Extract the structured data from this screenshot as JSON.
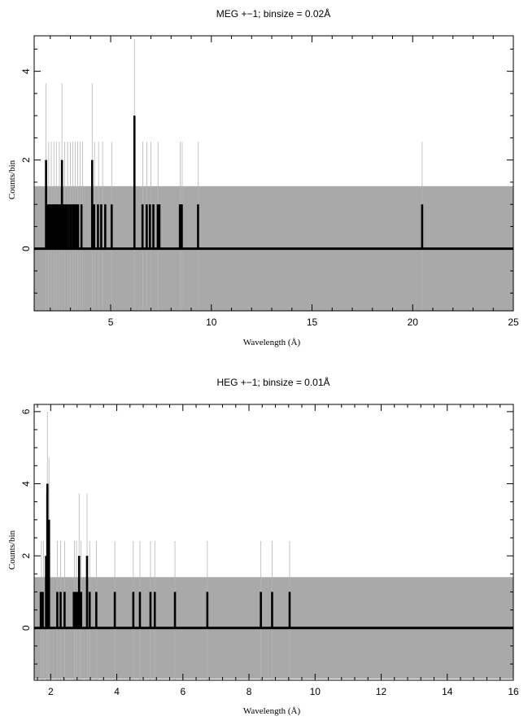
{
  "chart_data": [
    {
      "type": "histogram",
      "title": "MEG +−1; binsize = 0.02Å",
      "xlabel": "Wavelength (Å)",
      "ylabel": "Counts/bin",
      "xlim": [
        1.2,
        25
      ],
      "ylim": [
        -1.4,
        4.8
      ],
      "xticks": [
        5,
        10,
        15,
        20,
        25
      ],
      "yticks": [
        0,
        2,
        4
      ],
      "error_band": {
        "upper": 1.41,
        "lower": -1.41
      },
      "counts_series": {
        "color": "#000000",
        "points": [
          {
            "x": 1.79,
            "y": 2
          },
          {
            "x": 1.88,
            "y": 1
          },
          {
            "x": 1.97,
            "y": 1
          },
          {
            "x": 2.05,
            "y": 1
          },
          {
            "x": 2.14,
            "y": 1
          },
          {
            "x": 2.22,
            "y": 1
          },
          {
            "x": 2.29,
            "y": 1
          },
          {
            "x": 2.36,
            "y": 1
          },
          {
            "x": 2.44,
            "y": 1
          },
          {
            "x": 2.51,
            "y": 1
          },
          {
            "x": 2.58,
            "y": 2
          },
          {
            "x": 2.66,
            "y": 1
          },
          {
            "x": 2.74,
            "y": 1
          },
          {
            "x": 2.82,
            "y": 1
          },
          {
            "x": 2.92,
            "y": 1
          },
          {
            "x": 3.02,
            "y": 1
          },
          {
            "x": 3.12,
            "y": 1
          },
          {
            "x": 3.21,
            "y": 1
          },
          {
            "x": 3.3,
            "y": 1
          },
          {
            "x": 3.38,
            "y": 1
          },
          {
            "x": 3.55,
            "y": 1
          },
          {
            "x": 4.08,
            "y": 2
          },
          {
            "x": 4.18,
            "y": 1
          },
          {
            "x": 4.37,
            "y": 1
          },
          {
            "x": 4.53,
            "y": 1
          },
          {
            "x": 4.73,
            "y": 1
          },
          {
            "x": 5.05,
            "y": 1
          },
          {
            "x": 6.18,
            "y": 3
          },
          {
            "x": 6.58,
            "y": 1
          },
          {
            "x": 6.79,
            "y": 1
          },
          {
            "x": 6.95,
            "y": 1
          },
          {
            "x": 7.12,
            "y": 1
          },
          {
            "x": 7.34,
            "y": 1
          },
          {
            "x": 7.42,
            "y": 1
          },
          {
            "x": 8.44,
            "y": 1
          },
          {
            "x": 8.53,
            "y": 1
          },
          {
            "x": 9.34,
            "y": 1
          },
          {
            "x": 20.47,
            "y": 1
          }
        ]
      },
      "error_spikes": {
        "color": "#b4b4b4",
        "points": [
          {
            "x": 1.79,
            "y": 3.73
          },
          {
            "x": 1.92,
            "y": 2.41
          },
          {
            "x": 2.05,
            "y": 2.41
          },
          {
            "x": 2.18,
            "y": 2.41
          },
          {
            "x": 2.3,
            "y": 2.41
          },
          {
            "x": 2.45,
            "y": 2.41
          },
          {
            "x": 2.58,
            "y": 3.73
          },
          {
            "x": 2.72,
            "y": 2.41
          },
          {
            "x": 2.86,
            "y": 2.41
          },
          {
            "x": 3.0,
            "y": 2.41
          },
          {
            "x": 3.12,
            "y": 2.41
          },
          {
            "x": 3.24,
            "y": 2.41
          },
          {
            "x": 3.36,
            "y": 2.41
          },
          {
            "x": 3.48,
            "y": 2.41
          },
          {
            "x": 3.6,
            "y": 2.41
          },
          {
            "x": 4.08,
            "y": 3.73
          },
          {
            "x": 4.2,
            "y": 2.41
          },
          {
            "x": 4.4,
            "y": 2.41
          },
          {
            "x": 4.6,
            "y": 2.41
          },
          {
            "x": 5.05,
            "y": 2.41
          },
          {
            "x": 6.18,
            "y": 4.73
          },
          {
            "x": 6.6,
            "y": 2.41
          },
          {
            "x": 6.8,
            "y": 2.41
          },
          {
            "x": 7.0,
            "y": 2.41
          },
          {
            "x": 7.35,
            "y": 2.41
          },
          {
            "x": 8.45,
            "y": 2.41
          },
          {
            "x": 8.55,
            "y": 2.41
          },
          {
            "x": 9.35,
            "y": 2.41
          },
          {
            "x": 20.47,
            "y": 2.41
          }
        ]
      }
    },
    {
      "type": "histogram",
      "title": "HEG +−1; binsize = 0.01Å",
      "xlabel": "Wavelength (Å)",
      "ylabel": "Counts/bin",
      "xlim": [
        1.5,
        16
      ],
      "ylim": [
        -1.45,
        6.2
      ],
      "xticks": [
        2,
        4,
        6,
        8,
        10,
        12,
        14,
        16
      ],
      "yticks": [
        0,
        2,
        4,
        6
      ],
      "error_band": {
        "upper": 1.41,
        "lower": -1.41
      },
      "counts_series": {
        "color": "#000000",
        "points": [
          {
            "x": 1.7,
            "y": 1
          },
          {
            "x": 1.76,
            "y": 1
          },
          {
            "x": 1.86,
            "y": 2
          },
          {
            "x": 1.9,
            "y": 4
          },
          {
            "x": 1.95,
            "y": 3
          },
          {
            "x": 2.2,
            "y": 1
          },
          {
            "x": 2.3,
            "y": 1
          },
          {
            "x": 2.42,
            "y": 1
          },
          {
            "x": 2.7,
            "y": 1
          },
          {
            "x": 2.76,
            "y": 1
          },
          {
            "x": 2.82,
            "y": 1
          },
          {
            "x": 2.86,
            "y": 2
          },
          {
            "x": 2.92,
            "y": 1
          },
          {
            "x": 3.1,
            "y": 2
          },
          {
            "x": 3.18,
            "y": 1
          },
          {
            "x": 3.38,
            "y": 1
          },
          {
            "x": 3.94,
            "y": 1
          },
          {
            "x": 4.5,
            "y": 1
          },
          {
            "x": 4.7,
            "y": 1
          },
          {
            "x": 5.02,
            "y": 1
          },
          {
            "x": 5.15,
            "y": 1
          },
          {
            "x": 5.76,
            "y": 1
          },
          {
            "x": 6.74,
            "y": 1
          },
          {
            "x": 8.36,
            "y": 1
          },
          {
            "x": 8.7,
            "y": 1
          },
          {
            "x": 9.23,
            "y": 1
          }
        ]
      },
      "error_spikes": {
        "color": "#b4b4b4",
        "points": [
          {
            "x": 1.72,
            "y": 2.41
          },
          {
            "x": 1.78,
            "y": 2.41
          },
          {
            "x": 1.87,
            "y": 3.73
          },
          {
            "x": 1.9,
            "y": 6.0
          },
          {
            "x": 1.95,
            "y": 4.73
          },
          {
            "x": 2.2,
            "y": 2.41
          },
          {
            "x": 2.3,
            "y": 2.41
          },
          {
            "x": 2.42,
            "y": 2.41
          },
          {
            "x": 2.72,
            "y": 2.41
          },
          {
            "x": 2.78,
            "y": 2.41
          },
          {
            "x": 2.86,
            "y": 3.73
          },
          {
            "x": 2.92,
            "y": 2.41
          },
          {
            "x": 3.1,
            "y": 3.73
          },
          {
            "x": 3.18,
            "y": 2.41
          },
          {
            "x": 3.38,
            "y": 2.41
          },
          {
            "x": 3.94,
            "y": 2.41
          },
          {
            "x": 4.5,
            "y": 2.41
          },
          {
            "x": 4.7,
            "y": 2.41
          },
          {
            "x": 5.02,
            "y": 2.41
          },
          {
            "x": 5.15,
            "y": 2.41
          },
          {
            "x": 5.76,
            "y": 2.41
          },
          {
            "x": 6.74,
            "y": 2.41
          },
          {
            "x": 8.36,
            "y": 2.41
          },
          {
            "x": 8.7,
            "y": 2.41
          },
          {
            "x": 9.23,
            "y": 2.41
          }
        ]
      }
    }
  ]
}
